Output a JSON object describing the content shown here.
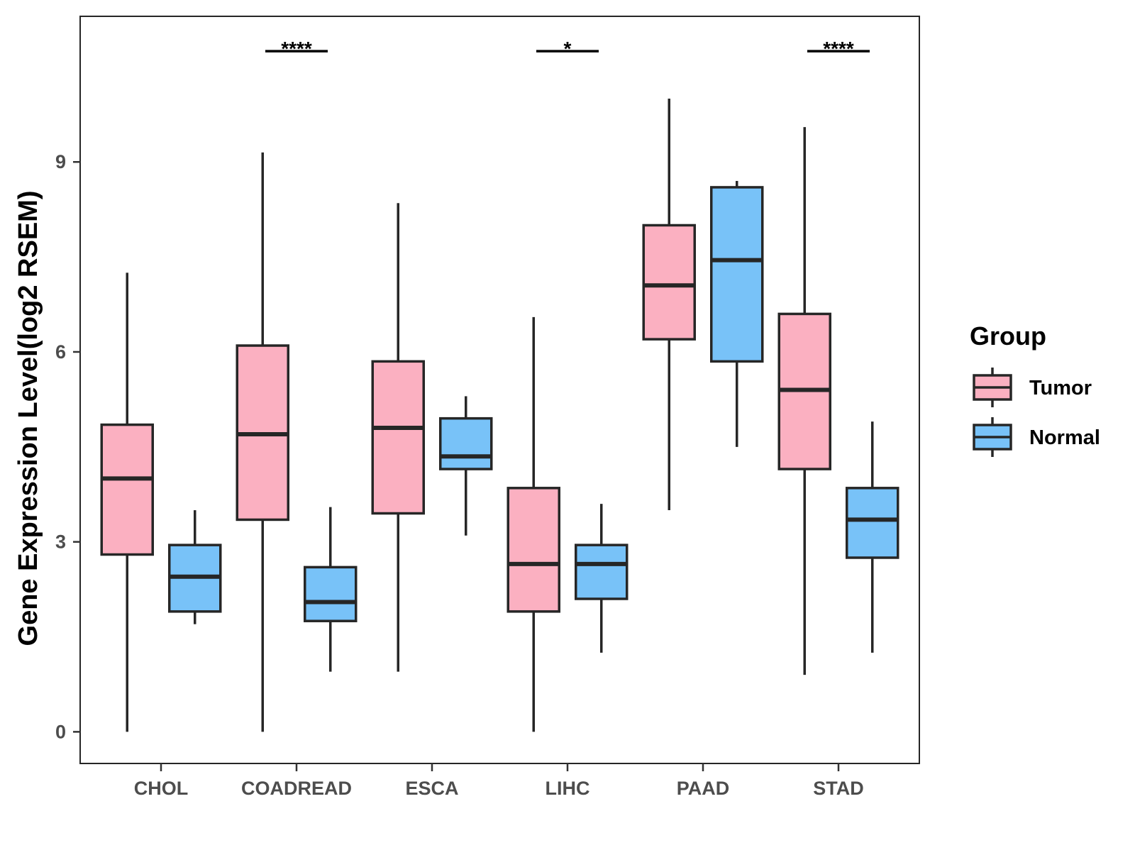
{
  "chart_data": {
    "type": "boxplot",
    "title": "",
    "xlabel": "",
    "ylabel": "Gene Expression Level(log2 RSEM)",
    "ylim": [
      -0.5,
      11.3
    ],
    "yticks": [
      0,
      3,
      6,
      9
    ],
    "grid": false,
    "legend": {
      "title": "Group",
      "position": "right"
    },
    "colors": {
      "Tumor": "#FBB0C1",
      "Normal": "#78C2F8",
      "stroke": "#262626"
    },
    "groups": [
      "Tumor",
      "Normal"
    ],
    "categories": [
      "CHOL",
      "COADREAD",
      "ESCA",
      "LIHC",
      "PAAD",
      "STAD"
    ],
    "series": [
      {
        "name": "Tumor",
        "boxes": [
          {
            "category": "CHOL",
            "min": 0.0,
            "q1": 2.8,
            "median": 4.0,
            "q3": 4.85,
            "max": 7.25
          },
          {
            "category": "COADREAD",
            "min": 0.0,
            "q1": 3.35,
            "median": 4.7,
            "q3": 6.1,
            "max": 9.15
          },
          {
            "category": "ESCA",
            "min": 0.95,
            "q1": 3.45,
            "median": 4.8,
            "q3": 5.85,
            "max": 8.35
          },
          {
            "category": "LIHC",
            "min": 0.0,
            "q1": 1.9,
            "median": 2.65,
            "q3": 3.85,
            "max": 6.55
          },
          {
            "category": "PAAD",
            "min": 3.5,
            "q1": 6.2,
            "median": 7.05,
            "q3": 8.0,
            "max": 10.0
          },
          {
            "category": "STAD",
            "min": 0.9,
            "q1": 4.15,
            "median": 5.4,
            "q3": 6.6,
            "max": 9.55
          }
        ]
      },
      {
        "name": "Normal",
        "boxes": [
          {
            "category": "CHOL",
            "min": 1.7,
            "q1": 1.9,
            "median": 2.45,
            "q3": 2.95,
            "max": 3.5
          },
          {
            "category": "COADREAD",
            "min": 0.95,
            "q1": 1.75,
            "median": 2.05,
            "q3": 2.6,
            "max": 3.55
          },
          {
            "category": "ESCA",
            "min": 3.1,
            "q1": 4.15,
            "median": 4.35,
            "q3": 4.95,
            "max": 5.3
          },
          {
            "category": "LIHC",
            "min": 1.25,
            "q1": 2.1,
            "median": 2.65,
            "q3": 2.95,
            "max": 3.6
          },
          {
            "category": "PAAD",
            "min": 4.5,
            "q1": 5.85,
            "median": 7.45,
            "q3": 8.6,
            "max": 8.7
          },
          {
            "category": "STAD",
            "min": 1.25,
            "q1": 2.75,
            "median": 3.35,
            "q3": 3.85,
            "max": 4.9
          }
        ]
      }
    ],
    "annotations": [
      {
        "category": "COADREAD",
        "label": "****",
        "y": 10.75
      },
      {
        "category": "LIHC",
        "label": "*",
        "y": 10.75
      },
      {
        "category": "STAD",
        "label": "****",
        "y": 10.75
      }
    ]
  }
}
